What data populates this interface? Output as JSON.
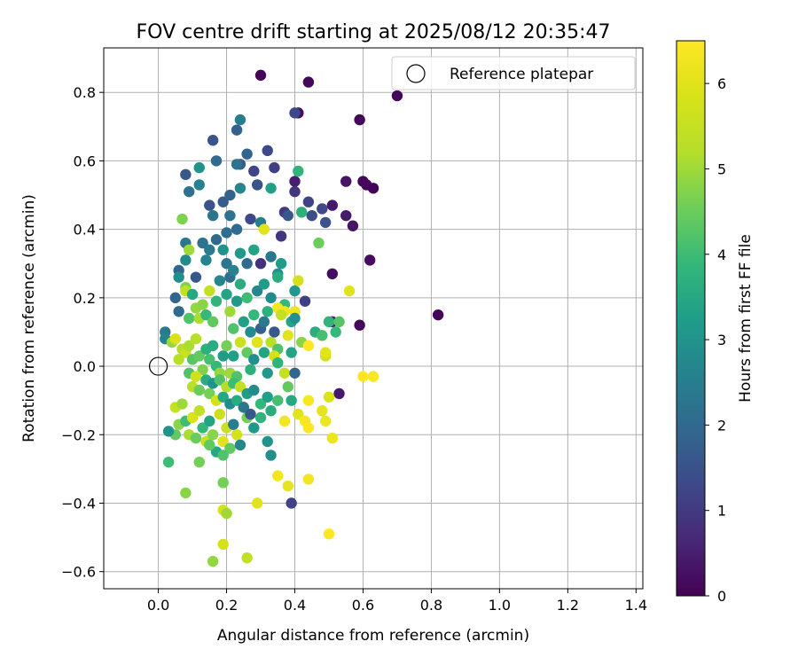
{
  "chart_data": {
    "type": "scatter",
    "title": "FOV centre drift starting at 2025/08/12 20:35:47",
    "xlabel": "Angular distance from reference (arcmin)",
    "ylabel": "Rotation from reference (arcmin)",
    "xlim": [
      -0.16,
      1.42
    ],
    "ylim": [
      -0.65,
      0.93
    ],
    "xticks": [
      0.0,
      0.2,
      0.4,
      0.6,
      0.8,
      1.0,
      1.2,
      1.4
    ],
    "xtick_labels": [
      "0.0",
      "0.2",
      "0.4",
      "0.6",
      "0.8",
      "1.0",
      "1.2",
      "1.4"
    ],
    "yticks": [
      -0.6,
      -0.4,
      -0.2,
      0.0,
      0.2,
      0.4,
      0.6,
      0.8
    ],
    "ytick_labels": [
      "−0.6",
      "−0.4",
      "−0.2",
      "0.0",
      "0.2",
      "0.4",
      "0.6",
      "0.8"
    ],
    "grid": true,
    "legend": {
      "position": "top-right",
      "entries": [
        "Reference platepar"
      ]
    },
    "reference_point": {
      "x": 0.0,
      "y": 0.0,
      "label": "Reference platepar"
    },
    "colorbar": {
      "label": "Hours from first FF file",
      "colormap": "viridis",
      "range": [
        0,
        6.5
      ],
      "ticks": [
        0,
        1,
        2,
        3,
        4,
        5,
        6
      ],
      "tick_labels": [
        "0",
        "1",
        "2",
        "3",
        "4",
        "5",
        "6"
      ]
    },
    "points": [
      [
        0.3,
        0.85,
        0.05
      ],
      [
        0.44,
        0.83,
        0.1
      ],
      [
        0.7,
        0.79,
        0.1
      ],
      [
        0.41,
        0.74,
        0.2
      ],
      [
        0.59,
        0.72,
        0.1
      ],
      [
        0.6,
        0.54,
        0.1
      ],
      [
        0.61,
        0.53,
        0.1
      ],
      [
        0.63,
        0.52,
        0.05
      ],
      [
        0.55,
        0.54,
        0.3
      ],
      [
        0.51,
        0.47,
        0.4
      ],
      [
        0.55,
        0.44,
        0.4
      ],
      [
        0.57,
        0.41,
        0.3
      ],
      [
        0.62,
        0.31,
        0.2
      ],
      [
        0.82,
        0.15,
        0.05
      ],
      [
        0.59,
        0.12,
        0.1
      ],
      [
        0.51,
        0.27,
        0.2
      ],
      [
        0.51,
        0.13,
        0.5
      ],
      [
        0.53,
        -0.08,
        0.4
      ],
      [
        0.4,
        0.54,
        0.5
      ],
      [
        0.4,
        0.51,
        0.9
      ],
      [
        0.37,
        0.45,
        1.0
      ],
      [
        0.44,
        0.48,
        1.2
      ],
      [
        0.45,
        0.44,
        1.4
      ],
      [
        0.49,
        0.42,
        1.5
      ],
      [
        0.48,
        0.46,
        1.3
      ],
      [
        0.4,
        0.74,
        1.3
      ],
      [
        0.28,
        0.57,
        1.2
      ],
      [
        0.29,
        0.53,
        1.5
      ],
      [
        0.32,
        0.63,
        1.3
      ],
      [
        0.34,
        0.58,
        1.1
      ],
      [
        0.3,
        0.3,
        0.8
      ],
      [
        0.36,
        0.38,
        0.9
      ],
      [
        0.38,
        0.44,
        1.6
      ],
      [
        0.43,
        0.19,
        1.1
      ],
      [
        0.24,
        0.72,
        2.5
      ],
      [
        0.23,
        0.69,
        1.8
      ],
      [
        0.16,
        0.66,
        1.5
      ],
      [
        0.26,
        0.62,
        1.9
      ],
      [
        0.24,
        0.59,
        1.7
      ],
      [
        0.23,
        0.59,
        2.2
      ],
      [
        0.17,
        0.6,
        2.0
      ],
      [
        0.08,
        0.56,
        1.6
      ],
      [
        0.12,
        0.58,
        3.0
      ],
      [
        0.12,
        0.53,
        2.6
      ],
      [
        0.09,
        0.51,
        2.2
      ],
      [
        0.15,
        0.47,
        1.5
      ],
      [
        0.19,
        0.48,
        1.7
      ],
      [
        0.21,
        0.5,
        1.8
      ],
      [
        0.24,
        0.52,
        2.7
      ],
      [
        0.27,
        0.43,
        1.3
      ],
      [
        0.23,
        0.4,
        2.0
      ],
      [
        0.2,
        0.39,
        2.1
      ],
      [
        0.16,
        0.44,
        2.3
      ],
      [
        0.21,
        0.44,
        2.2
      ],
      [
        0.3,
        0.42,
        2.5
      ],
      [
        0.33,
        0.52,
        3.3
      ],
      [
        0.41,
        0.57,
        3.8
      ],
      [
        0.42,
        0.45,
        3.7
      ],
      [
        0.47,
        0.36,
        4.5
      ],
      [
        0.36,
        0.3,
        3.2
      ],
      [
        0.35,
        0.27,
        2.9
      ],
      [
        0.33,
        0.32,
        2.3
      ],
      [
        0.31,
        0.4,
        6.0
      ],
      [
        0.08,
        0.36,
        2.3
      ],
      [
        0.07,
        0.43,
        4.7
      ],
      [
        0.09,
        0.34,
        5.0
      ],
      [
        0.08,
        0.31,
        2.8
      ],
      [
        0.06,
        0.28,
        1.9
      ],
      [
        0.11,
        0.26,
        1.6
      ],
      [
        0.13,
        0.36,
        2.2
      ],
      [
        0.14,
        0.31,
        2.6
      ],
      [
        0.15,
        0.34,
        2.4
      ],
      [
        0.17,
        0.37,
        2.0
      ],
      [
        0.19,
        0.34,
        3.0
      ],
      [
        0.2,
        0.3,
        2.3
      ],
      [
        0.21,
        0.26,
        2.1
      ],
      [
        0.22,
        0.28,
        2.6
      ],
      [
        0.24,
        0.33,
        3.1
      ],
      [
        0.26,
        0.3,
        2.0
      ],
      [
        0.28,
        0.34,
        3.4
      ],
      [
        0.29,
        0.22,
        2.7
      ],
      [
        0.31,
        0.24,
        3.2
      ],
      [
        0.33,
        0.2,
        2.8
      ],
      [
        0.35,
        0.26,
        3.6
      ],
      [
        0.37,
        0.18,
        3.9
      ],
      [
        0.39,
        0.13,
        3.4
      ],
      [
        0.4,
        0.22,
        3.1
      ],
      [
        0.41,
        0.25,
        5.8
      ],
      [
        0.4,
        0.16,
        6.2
      ],
      [
        0.37,
        0.16,
        6.2
      ],
      [
        0.35,
        0.17,
        6.3
      ],
      [
        0.56,
        0.22,
        6.0
      ],
      [
        0.06,
        0.26,
        2.9
      ],
      [
        0.05,
        0.2,
        1.9
      ],
      [
        0.06,
        0.16,
        2.0
      ],
      [
        0.08,
        0.23,
        4.7
      ],
      [
        0.08,
        0.22,
        5.4
      ],
      [
        0.09,
        0.14,
        4.2
      ],
      [
        0.1,
        0.21,
        3.5
      ],
      [
        0.11,
        0.17,
        4.9
      ],
      [
        0.12,
        0.14,
        5.1
      ],
      [
        0.13,
        0.18,
        4.8
      ],
      [
        0.14,
        0.15,
        3.9
      ],
      [
        0.15,
        0.22,
        5.5
      ],
      [
        0.16,
        0.13,
        4.4
      ],
      [
        0.17,
        0.19,
        3.8
      ],
      [
        0.18,
        0.25,
        2.7
      ],
      [
        0.2,
        0.21,
        3.4
      ],
      [
        0.21,
        0.16,
        5.0
      ],
      [
        0.22,
        0.11,
        4.2
      ],
      [
        0.23,
        0.19,
        3.1
      ],
      [
        0.24,
        0.24,
        3.6
      ],
      [
        0.25,
        0.13,
        3.3
      ],
      [
        0.26,
        0.2,
        4.0
      ],
      [
        0.27,
        0.1,
        2.8
      ],
      [
        0.28,
        0.15,
        3.9
      ],
      [
        0.29,
        0.07,
        4.4
      ],
      [
        0.3,
        0.11,
        1.8
      ],
      [
        0.31,
        0.13,
        2.4
      ],
      [
        0.32,
        0.16,
        3.7
      ],
      [
        0.33,
        0.07,
        5.3
      ],
      [
        0.34,
        0.1,
        1.6
      ],
      [
        0.35,
        0.05,
        4.2
      ],
      [
        0.36,
        0.15,
        5.5
      ],
      [
        0.38,
        0.09,
        6.0
      ],
      [
        0.39,
        0.04,
        3.4
      ],
      [
        0.4,
        0.14,
        2.9
      ],
      [
        0.42,
        0.07,
        4.8
      ],
      [
        0.44,
        0.06,
        6.5
      ],
      [
        0.46,
        0.1,
        3.6
      ],
      [
        0.48,
        0.09,
        4.1
      ],
      [
        0.5,
        0.13,
        3.8
      ],
      [
        0.52,
        0.1,
        3.9
      ],
      [
        0.53,
        0.13,
        4.3
      ],
      [
        0.49,
        0.03,
        5.7
      ],
      [
        0.49,
        0.04,
        6.0
      ],
      [
        0.02,
        0.1,
        2.4
      ],
      [
        0.02,
        0.08,
        2.6
      ],
      [
        0.04,
        0.07,
        4.9
      ],
      [
        0.05,
        0.08,
        5.9
      ],
      [
        0.07,
        0.05,
        5.2
      ],
      [
        0.08,
        0.04,
        5.6
      ],
      [
        0.09,
        0.06,
        5.1
      ],
      [
        0.1,
        0.02,
        4.3
      ],
      [
        0.11,
        0.08,
        5.3
      ],
      [
        0.12,
        0.03,
        4.4
      ],
      [
        0.13,
        -0.01,
        4.7
      ],
      [
        0.14,
        0.05,
        3.7
      ],
      [
        0.15,
        0.02,
        4.1
      ],
      [
        0.16,
        0.06,
        3.6
      ],
      [
        0.17,
        0.0,
        3.9
      ],
      [
        0.18,
        -0.02,
        4.9
      ],
      [
        0.19,
        0.03,
        3.2
      ],
      [
        0.2,
        0.06,
        4.6
      ],
      [
        0.21,
        -0.02,
        5.0
      ],
      [
        0.22,
        0.03,
        3.3
      ],
      [
        0.23,
        -0.03,
        4.2
      ],
      [
        0.24,
        0.07,
        5.6
      ],
      [
        0.26,
        0.04,
        4.4
      ],
      [
        0.27,
        -0.01,
        3.7
      ],
      [
        0.28,
        0.02,
        2.9
      ],
      [
        0.29,
        0.07,
        6.0
      ],
      [
        0.31,
        0.04,
        3.4
      ],
      [
        0.32,
        -0.02,
        3.1
      ],
      [
        0.34,
        0.03,
        5.8
      ],
      [
        0.35,
        0.01,
        3.8
      ],
      [
        0.37,
        -0.02,
        5.5
      ],
      [
        0.38,
        -0.06,
        4.4
      ],
      [
        0.4,
        -0.02,
        1.9
      ],
      [
        0.06,
        0.02,
        5.3
      ],
      [
        0.09,
        -0.02,
        4.2
      ],
      [
        0.1,
        -0.06,
        5.3
      ],
      [
        0.11,
        -0.03,
        5.7
      ],
      [
        0.12,
        -0.07,
        4.5
      ],
      [
        0.14,
        -0.04,
        3.6
      ],
      [
        0.15,
        -0.08,
        4.6
      ],
      [
        0.16,
        -0.05,
        3.0
      ],
      [
        0.17,
        -0.1,
        5.8
      ],
      [
        0.18,
        -0.04,
        4.2
      ],
      [
        0.19,
        -0.09,
        3.5
      ],
      [
        0.2,
        -0.06,
        5.2
      ],
      [
        0.21,
        -0.11,
        2.8
      ],
      [
        0.22,
        -0.05,
        4.0
      ],
      [
        0.23,
        -0.1,
        3.6
      ],
      [
        0.24,
        -0.06,
        5.5
      ],
      [
        0.25,
        -0.12,
        4.7
      ],
      [
        0.26,
        -0.08,
        3.2
      ],
      [
        0.27,
        -0.14,
        6.2
      ],
      [
        0.28,
        -0.07,
        2.8
      ],
      [
        0.3,
        -0.11,
        3.9
      ],
      [
        0.32,
        -0.09,
        3.3
      ],
      [
        0.33,
        -0.13,
        3.6
      ],
      [
        0.35,
        -0.1,
        4.1
      ],
      [
        0.37,
        -0.16,
        6.3
      ],
      [
        0.39,
        -0.1,
        3.5
      ],
      [
        0.41,
        -0.14,
        6.0
      ],
      [
        0.43,
        -0.16,
        6.4
      ],
      [
        0.44,
        -0.18,
        6.5
      ],
      [
        0.49,
        -0.16,
        6.2
      ],
      [
        0.48,
        -0.13,
        6.1
      ],
      [
        0.5,
        -0.09,
        5.9
      ],
      [
        0.51,
        -0.21,
        6.2
      ],
      [
        0.44,
        -0.1,
        6.4
      ],
      [
        0.6,
        -0.03,
        6.5
      ],
      [
        0.63,
        -0.03,
        6.4
      ],
      [
        0.05,
        -0.2,
        4.4
      ],
      [
        0.05,
        -0.12,
        5.5
      ],
      [
        0.06,
        -0.17,
        4.8
      ],
      [
        0.07,
        -0.11,
        5.0
      ],
      [
        0.08,
        -0.16,
        4.0
      ],
      [
        0.09,
        -0.2,
        5.1
      ],
      [
        0.1,
        -0.15,
        5.9
      ],
      [
        0.11,
        -0.21,
        4.5
      ],
      [
        0.12,
        -0.13,
        5.4
      ],
      [
        0.13,
        -0.18,
        3.9
      ],
      [
        0.14,
        -0.22,
        5.5
      ],
      [
        0.15,
        -0.16,
        3.4
      ],
      [
        0.16,
        -0.2,
        4.8
      ],
      [
        0.17,
        -0.25,
        3.5
      ],
      [
        0.18,
        -0.14,
        5.6
      ],
      [
        0.19,
        -0.22,
        6.0
      ],
      [
        0.2,
        -0.18,
        5.6
      ],
      [
        0.21,
        -0.24,
        4.4
      ],
      [
        0.22,
        -0.17,
        2.5
      ],
      [
        0.23,
        -0.2,
        5.8
      ],
      [
        0.24,
        -0.23,
        2.7
      ],
      [
        0.25,
        -0.12,
        2.3
      ],
      [
        0.26,
        -0.15,
        4.6
      ],
      [
        0.27,
        -0.14,
        1.6
      ],
      [
        0.28,
        -0.18,
        3.1
      ],
      [
        0.3,
        -0.15,
        3.8
      ],
      [
        0.32,
        -0.22,
        3.0
      ],
      [
        0.33,
        -0.26,
        2.9
      ],
      [
        0.03,
        -0.19,
        3.0
      ],
      [
        0.03,
        -0.28,
        4.0
      ],
      [
        0.08,
        -0.37,
        4.8
      ],
      [
        0.12,
        -0.28,
        4.6
      ],
      [
        0.15,
        -0.23,
        4.4
      ],
      [
        0.19,
        -0.26,
        4.2
      ],
      [
        0.19,
        -0.34,
        4.6
      ],
      [
        0.19,
        -0.42,
        5.8
      ],
      [
        0.2,
        -0.43,
        5.0
      ],
      [
        0.19,
        -0.52,
        5.8
      ],
      [
        0.16,
        -0.57,
        4.9
      ],
      [
        0.26,
        -0.56,
        5.4
      ],
      [
        0.29,
        -0.4,
        6.0
      ],
      [
        0.35,
        -0.32,
        6.3
      ],
      [
        0.38,
        -0.35,
        6.1
      ],
      [
        0.39,
        -0.4,
        1.2
      ],
      [
        0.44,
        -0.33,
        6.3
      ],
      [
        0.5,
        -0.49,
        6.5
      ]
    ]
  }
}
